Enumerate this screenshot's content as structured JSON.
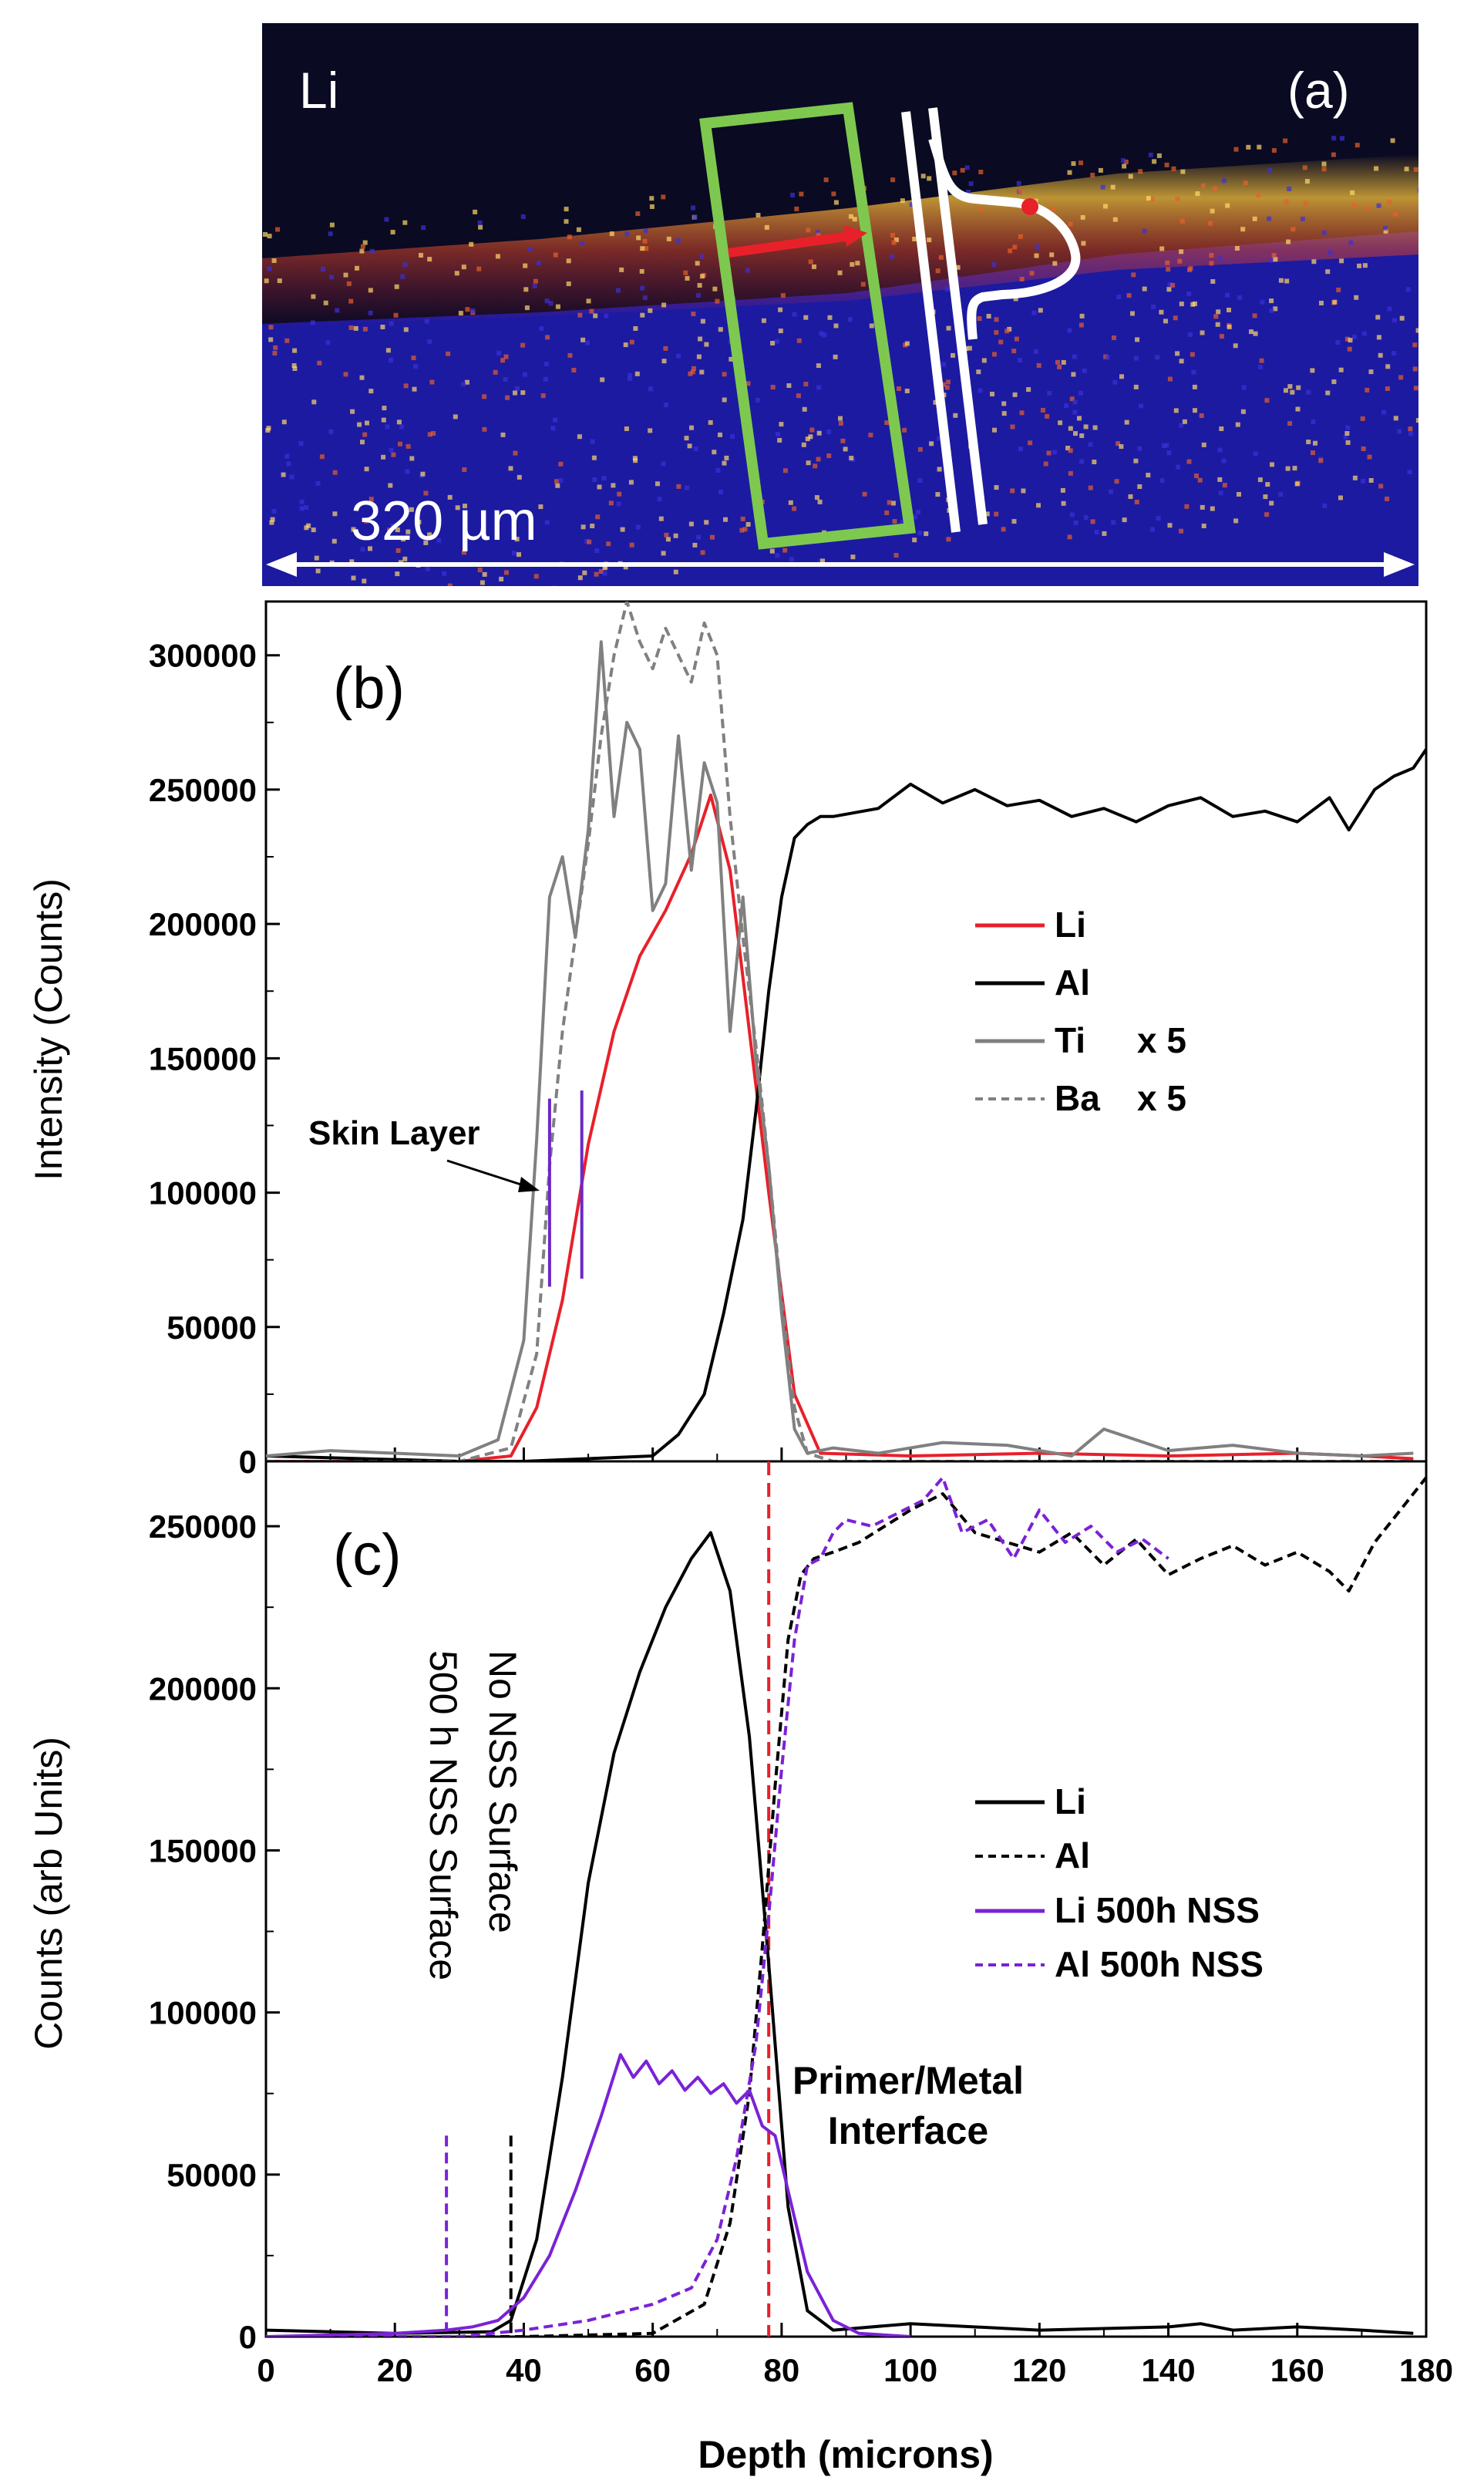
{
  "panel_a": {
    "element_label": "Li",
    "panel_label": "(a)",
    "scale_label": "320 µm"
  },
  "colors": {
    "li": "#e8202a",
    "al": "#000000",
    "ti": "#808080",
    "ba": "#808080",
    "nss": "#7a22d6",
    "skin_marker": "#6a28c8",
    "interface_line": "#e8202a",
    "box": "#7ec850"
  },
  "chart_data": [
    {
      "type": "line",
      "panel_label": "(b)",
      "ylabel": "Intensity (Counts)",
      "xlim": [
        0,
        180
      ],
      "ylim": [
        0,
        320000
      ],
      "yticks": [
        0,
        50000,
        100000,
        150000,
        200000,
        250000,
        300000
      ],
      "legend_position": "right",
      "annotation": "Skin Layer",
      "skin_layer_markers_x": [
        44,
        49
      ],
      "series": [
        {
          "name": "Li",
          "style": "solid",
          "color": "#e8202a",
          "x": [
            0,
            30,
            38,
            42,
            46,
            50,
            54,
            58,
            62,
            66,
            69,
            72,
            75,
            78,
            82,
            86,
            100,
            120,
            140,
            160,
            170,
            178
          ],
          "y": [
            0,
            0,
            2000,
            20000,
            60000,
            118000,
            160000,
            188000,
            205000,
            226000,
            248000,
            220000,
            160000,
            100000,
            25000,
            3000,
            2000,
            3000,
            2000,
            3000,
            2000,
            1000
          ]
        },
        {
          "name": "Al",
          "style": "solid",
          "color": "#000000",
          "x": [
            0,
            30,
            40,
            60,
            64,
            68,
            71,
            74,
            76,
            78,
            80,
            82,
            84,
            86,
            88,
            95,
            100,
            105,
            110,
            115,
            120,
            125,
            130,
            135,
            140,
            145,
            150,
            155,
            160,
            165,
            168,
            172,
            175,
            178,
            180
          ],
          "y": [
            2000,
            0,
            0,
            2000,
            10000,
            25000,
            55000,
            90000,
            130000,
            175000,
            210000,
            232000,
            237000,
            240000,
            240000,
            243000,
            252000,
            245000,
            250000,
            244000,
            246000,
            240000,
            243000,
            238000,
            244000,
            247000,
            240000,
            242000,
            238000,
            247000,
            235000,
            250000,
            255000,
            258000,
            265000
          ]
        },
        {
          "name": "Ti x 5",
          "label": "Ti",
          "multiplier": "x 5",
          "style": "solid",
          "color": "#808080",
          "x": [
            0,
            10,
            20,
            30,
            36,
            40,
            42,
            44,
            46,
            48,
            50,
            52,
            54,
            56,
            58,
            60,
            62,
            64,
            66,
            68,
            70,
            72,
            74,
            76,
            78,
            80,
            82,
            84,
            88,
            95,
            105,
            115,
            125,
            130,
            140,
            150,
            160,
            170,
            178
          ],
          "y": [
            2000,
            4000,
            3000,
            2000,
            8000,
            45000,
            120000,
            210000,
            225000,
            195000,
            235000,
            305000,
            240000,
            275000,
            265000,
            205000,
            215000,
            270000,
            220000,
            260000,
            245000,
            160000,
            210000,
            150000,
            110000,
            55000,
            12000,
            3000,
            5000,
            3000,
            7000,
            6000,
            2000,
            12000,
            4000,
            6000,
            3000,
            2000,
            3000
          ]
        },
        {
          "name": "Ba x 5",
          "label": "Ba",
          "multiplier": "x 5",
          "style": "dashed",
          "color": "#808080",
          "x": [
            0,
            30,
            38,
            42,
            44,
            46,
            48,
            50,
            52,
            54,
            56,
            58,
            60,
            62,
            64,
            66,
            68,
            70,
            72,
            74,
            76,
            78,
            80,
            82,
            84,
            88,
            100,
            178
          ],
          "y": [
            0,
            0,
            5000,
            40000,
            110000,
            160000,
            195000,
            230000,
            270000,
            300000,
            320000,
            305000,
            295000,
            310000,
            300000,
            290000,
            312000,
            300000,
            240000,
            195000,
            155000,
            110000,
            60000,
            20000,
            3000,
            0,
            0,
            0
          ]
        }
      ]
    },
    {
      "type": "line",
      "panel_label": "(c)",
      "xlabel": "Depth (microns)",
      "ylabel": "Counts (arb Units)",
      "xlim": [
        0,
        180
      ],
      "ylim": [
        0,
        270000
      ],
      "xticks": [
        0,
        20,
        40,
        60,
        80,
        100,
        120,
        140,
        160,
        180
      ],
      "yticks": [
        0,
        50000,
        100000,
        150000,
        200000,
        250000
      ],
      "legend_position": "right",
      "annotations": [
        {
          "text": "500 h NSS Surface",
          "x": 28
        },
        {
          "text": "No NSS Surface",
          "x": 38
        },
        {
          "text": "Primer/Metal Interface",
          "x": 78
        }
      ],
      "series": [
        {
          "name": "Li",
          "style": "solid",
          "color": "#000000",
          "x": [
            0,
            20,
            35,
            38,
            42,
            46,
            50,
            54,
            58,
            62,
            66,
            69,
            72,
            75,
            78,
            81,
            84,
            88,
            100,
            120,
            140,
            145,
            150,
            160,
            170,
            178
          ],
          "y": [
            2000,
            1000,
            1500,
            5000,
            30000,
            80000,
            140000,
            180000,
            205000,
            225000,
            240000,
            248000,
            230000,
            185000,
            115000,
            40000,
            8000,
            2000,
            4000,
            2000,
            3000,
            4000,
            2000,
            3000,
            2000,
            1000
          ]
        },
        {
          "name": "Al",
          "style": "dashed",
          "color": "#000000",
          "x": [
            0,
            30,
            40,
            60,
            68,
            72,
            75,
            77,
            79,
            81,
            83,
            85,
            88,
            92,
            96,
            100,
            105,
            110,
            115,
            120,
            125,
            130,
            135,
            140,
            145,
            150,
            155,
            160,
            165,
            168,
            172,
            176,
            180
          ],
          "y": [
            0,
            0,
            0,
            1000,
            10000,
            35000,
            75000,
            120000,
            170000,
            215000,
            235000,
            240000,
            242000,
            245000,
            250000,
            255000,
            260000,
            248000,
            245000,
            242000,
            248000,
            238000,
            246000,
            235000,
            240000,
            244000,
            238000,
            242000,
            236000,
            230000,
            245000,
            255000,
            265000
          ]
        },
        {
          "name": "Li 500h NSS",
          "style": "solid",
          "color": "#7a22d6",
          "x": [
            0,
            20,
            28,
            32,
            36,
            40,
            44,
            48,
            52,
            55,
            57,
            59,
            61,
            63,
            65,
            67,
            69,
            71,
            73,
            75,
            77,
            79,
            81,
            84,
            88,
            92,
            100
          ],
          "y": [
            0,
            1000,
            2000,
            3000,
            5000,
            12000,
            25000,
            45000,
            68000,
            87000,
            80000,
            85000,
            78000,
            82000,
            76000,
            80000,
            75000,
            78000,
            72000,
            76000,
            65000,
            62000,
            45000,
            20000,
            5000,
            1000,
            0
          ]
        },
        {
          "name": "Al 500h NSS",
          "style": "dashed",
          "color": "#7a22d6",
          "x": [
            0,
            30,
            40,
            50,
            60,
            66,
            70,
            73,
            76,
            78,
            80,
            82,
            84,
            86,
            88,
            90,
            94,
            98,
            102,
            105,
            108,
            112,
            116,
            120,
            124,
            128,
            132,
            136,
            140
          ],
          "y": [
            0,
            0,
            2000,
            5000,
            10000,
            15000,
            30000,
            55000,
            90000,
            130000,
            175000,
            215000,
            238000,
            240000,
            248000,
            252000,
            250000,
            254000,
            258000,
            265000,
            248000,
            252000,
            240000,
            255000,
            245000,
            250000,
            242000,
            246000,
            240000
          ]
        }
      ]
    }
  ]
}
